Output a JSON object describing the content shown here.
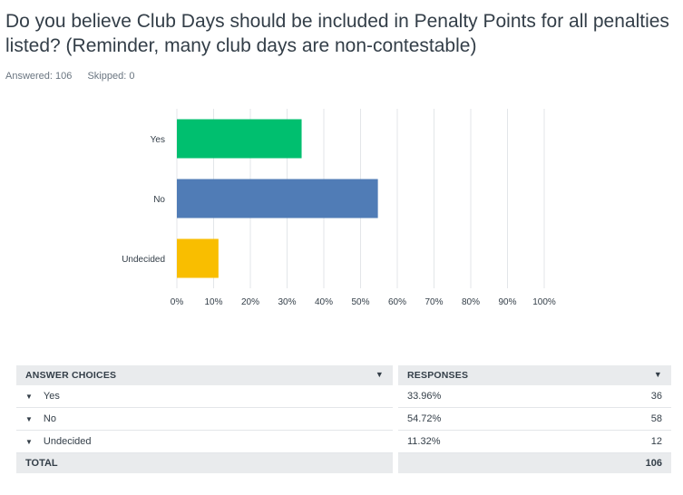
{
  "question": {
    "title": "Do you believe Club Days should be included in Penalty Points for all penalties listed? (Reminder, many club days are non-contestable)",
    "answered": "Answered: 106",
    "skipped": "Skipped: 0"
  },
  "chart_data": {
    "type": "bar",
    "orientation": "horizontal",
    "categories": [
      "Yes",
      "No",
      "Undecided"
    ],
    "values": [
      33.96,
      54.72,
      11.32
    ],
    "colors": [
      "#00bf6f",
      "#507cb6",
      "#f9be00"
    ],
    "xlim": [
      0,
      100
    ],
    "xticks": [
      "0%",
      "10%",
      "20%",
      "30%",
      "40%",
      "50%",
      "60%",
      "70%",
      "80%",
      "90%",
      "100%"
    ],
    "grid": true
  },
  "table": {
    "header_choices": "ANSWER CHOICES",
    "header_responses": "RESPONSES",
    "rows": [
      {
        "choice": "Yes",
        "percent": "33.96%",
        "count": "36"
      },
      {
        "choice": "No",
        "percent": "54.72%",
        "count": "58"
      },
      {
        "choice": "Undecided",
        "percent": "11.32%",
        "count": "12"
      }
    ],
    "total_label": "TOTAL",
    "total_count": "106"
  }
}
